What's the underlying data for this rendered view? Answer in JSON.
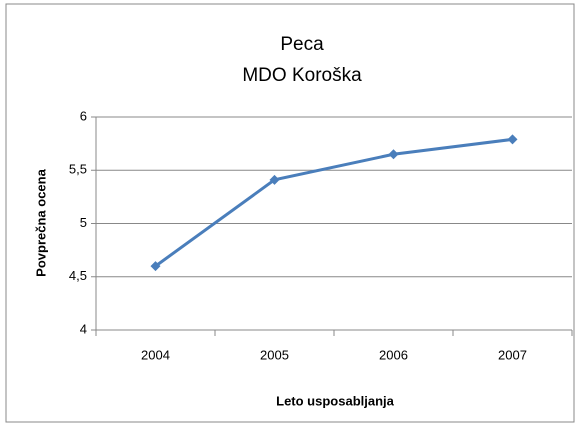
{
  "chart_data": {
    "type": "line",
    "title": "Peca",
    "subtitle": "MDO Koroška",
    "x_label": "Leto usposabljanja",
    "y_label": "Povprečna ocena",
    "categories": [
      "2004",
      "2005",
      "2006",
      "2007"
    ],
    "series": [
      {
        "name": "Povprečna ocena",
        "color": "#4a7ebb",
        "values": [
          4.6,
          5.41,
          5.65,
          5.79
        ]
      }
    ],
    "ylim": [
      4,
      6
    ],
    "yticks": [
      4,
      {
        "value": 4.5,
        "label": "4,5"
      },
      5,
      {
        "value": 5.5,
        "label": "5,5"
      },
      6
    ],
    "grid": true,
    "legend": false
  }
}
